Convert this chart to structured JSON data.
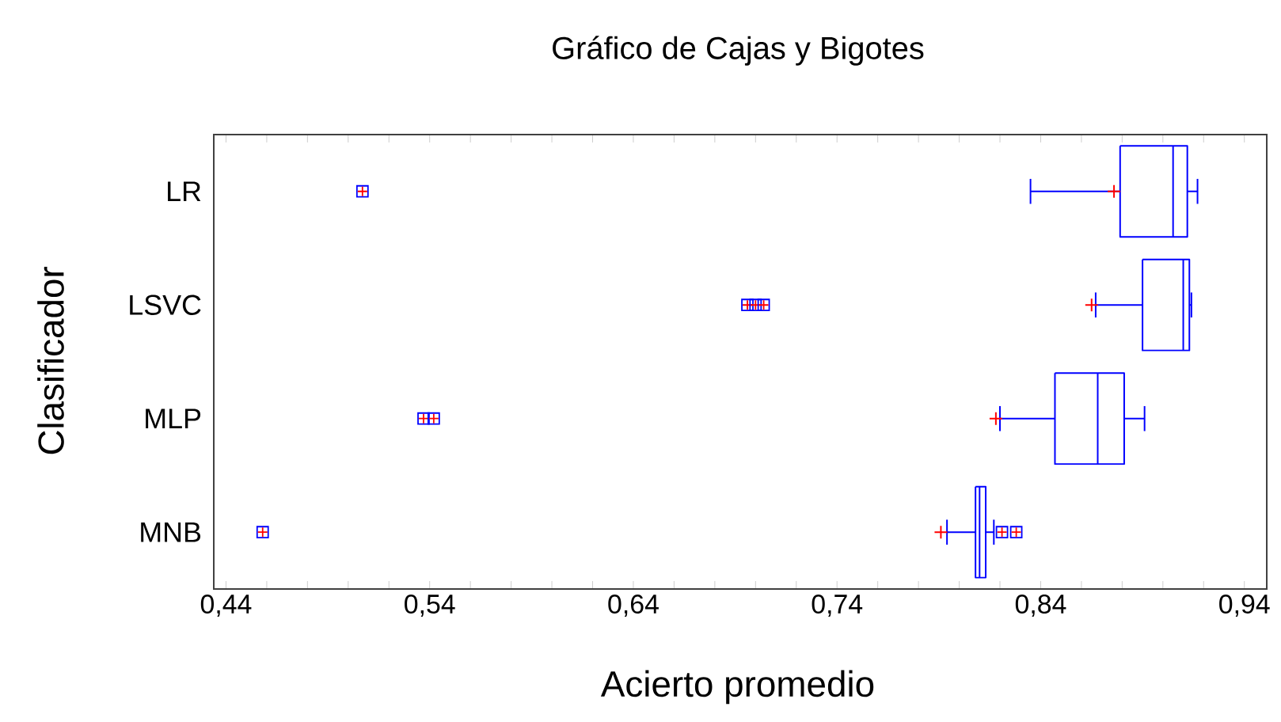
{
  "chart_data": {
    "type": "box",
    "orientation": "horizontal",
    "title": "Gráfico de Cajas y Bigotes",
    "xlabel": "Acierto promedio",
    "ylabel": "Clasificador",
    "categories": [
      "LR",
      "LSVC",
      "MLP",
      "MNB"
    ],
    "color": "#0000ff",
    "boxes": [
      {
        "low": 0.835,
        "q1": 0.879,
        "median": 0.905,
        "q3": 0.912,
        "high": 0.917,
        "mean": 0.876,
        "outliers": [
          0.507
        ]
      },
      {
        "low": 0.867,
        "q1": 0.89,
        "median": 0.91,
        "q3": 0.913,
        "high": 0.914,
        "mean": 0.865,
        "outliers": [
          0.696,
          0.7,
          0.704
        ]
      },
      {
        "low": 0.82,
        "q1": 0.847,
        "median": 0.868,
        "q3": 0.881,
        "high": 0.891,
        "mean": 0.818,
        "outliers": [
          0.537,
          0.542
        ]
      },
      {
        "low": 0.794,
        "q1": 0.808,
        "median": 0.81,
        "q3": 0.813,
        "high": 0.817,
        "mean": 0.791,
        "outliers": [
          0.458,
          0.821,
          0.828
        ]
      }
    ],
    "xlim": [
      0.434,
      0.951
    ],
    "xticks": [
      {
        "value": 0.44,
        "label": "0,44"
      },
      {
        "value": 0.46,
        "label": null
      },
      {
        "value": 0.48,
        "label": null
      },
      {
        "value": 0.5,
        "label": null
      },
      {
        "value": 0.52,
        "label": null
      },
      {
        "value": 0.54,
        "label": "0,54"
      },
      {
        "value": 0.56,
        "label": null
      },
      {
        "value": 0.58,
        "label": null
      },
      {
        "value": 0.6,
        "label": null
      },
      {
        "value": 0.62,
        "label": null
      },
      {
        "value": 0.64,
        "label": "0,64"
      },
      {
        "value": 0.66,
        "label": null
      },
      {
        "value": 0.68,
        "label": null
      },
      {
        "value": 0.7,
        "label": null
      },
      {
        "value": 0.72,
        "label": null
      },
      {
        "value": 0.74,
        "label": "0,74"
      },
      {
        "value": 0.76,
        "label": null
      },
      {
        "value": 0.78,
        "label": null
      },
      {
        "value": 0.8,
        "label": null
      },
      {
        "value": 0.82,
        "label": null
      },
      {
        "value": 0.84,
        "label": "0,84"
      },
      {
        "value": 0.86,
        "label": null
      },
      {
        "value": 0.88,
        "label": null
      },
      {
        "value": 0.9,
        "label": null
      },
      {
        "value": 0.92,
        "label": null
      },
      {
        "value": 0.94,
        "label": "0,94"
      }
    ]
  }
}
